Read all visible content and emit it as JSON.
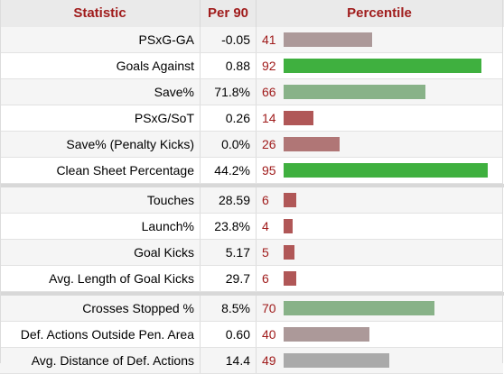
{
  "header": {
    "statistic": "Statistic",
    "per90": "Per 90",
    "percentile": "Percentile"
  },
  "bar_colors": {
    "low": "#b05757",
    "mid_low": "#b07676",
    "mid": "#ac9999",
    "neutral": "#aaaaaa",
    "mid_high": "#88b288",
    "high": "#3fb03f"
  },
  "groups": [
    {
      "rows": [
        {
          "stat": "PSxG-GA",
          "per90": "-0.05",
          "percentile": "41",
          "color": "#ac9999"
        },
        {
          "stat": "Goals Against",
          "per90": "0.88",
          "percentile": "92",
          "color": "#3fb03f"
        },
        {
          "stat": "Save%",
          "per90": "71.8%",
          "percentile": "66",
          "color": "#88b288"
        },
        {
          "stat": "PSxG/SoT",
          "per90": "0.26",
          "percentile": "14",
          "color": "#b05757"
        },
        {
          "stat": "Save% (Penalty Kicks)",
          "per90": "0.0%",
          "percentile": "26",
          "color": "#b07676"
        },
        {
          "stat": "Clean Sheet Percentage",
          "per90": "44.2%",
          "percentile": "95",
          "color": "#3fb03f"
        }
      ]
    },
    {
      "rows": [
        {
          "stat": "Touches",
          "per90": "28.59",
          "percentile": "6",
          "color": "#b05757"
        },
        {
          "stat": "Launch%",
          "per90": "23.8%",
          "percentile": "4",
          "color": "#b05757"
        },
        {
          "stat": "Goal Kicks",
          "per90": "5.17",
          "percentile": "5",
          "color": "#b05757"
        },
        {
          "stat": "Avg. Length of Goal Kicks",
          "per90": "29.7",
          "percentile": "6",
          "color": "#b05757"
        }
      ]
    },
    {
      "rows": [
        {
          "stat": "Crosses Stopped %",
          "per90": "8.5%",
          "percentile": "70",
          "color": "#88b288"
        },
        {
          "stat": "Def. Actions Outside Pen. Area",
          "per90": "0.60",
          "percentile": "40",
          "color": "#ac9999"
        },
        {
          "stat": "Avg. Distance of Def. Actions",
          "per90": "14.4",
          "percentile": "49",
          "color": "#aaaaaa"
        }
      ]
    }
  ]
}
